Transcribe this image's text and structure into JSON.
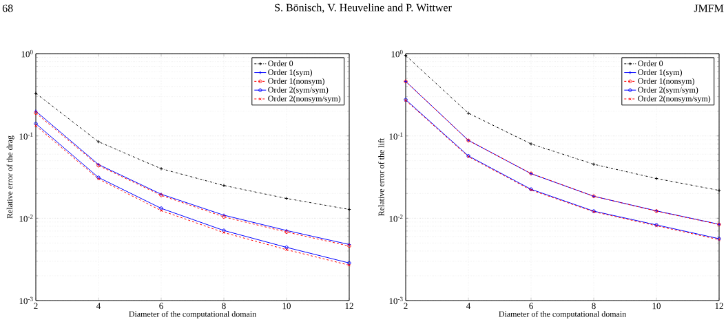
{
  "chart_data": [
    {
      "type": "line",
      "xlabel": "Diameter of the computational domain",
      "ylabel": "Relative error of the drag",
      "annotations": [
        "68",
        "S. Bönisch, V. Heuveline and P. Wittwer"
      ],
      "log": "y",
      "grid": true,
      "legend": "top right",
      "xlim": [
        2,
        12
      ],
      "xticks": [
        2,
        4,
        6,
        8,
        10,
        12
      ],
      "ylim": [
        0.001,
        1
      ],
      "yticks": [
        {
          "value": 0.001,
          "label": "10$^{-3}$"
        },
        {
          "value": 0.01,
          "label": "10$^{-2}$"
        },
        {
          "value": 0.1,
          "label": "10$^{-1}$"
        },
        {
          "value": 1,
          "label": "10$^{0}$"
        }
      ],
      "x": [
        2,
        4,
        6,
        8,
        10,
        12
      ],
      "series": [
        {
          "name": "Order 0",
          "color": "#000000",
          "marker": "plus",
          "line_style": "dashdot",
          "values": [
            0.33,
            0.085,
            0.04,
            0.025,
            0.0174,
            0.0128
          ]
        },
        {
          "name": "Order 1(sym)",
          "color": "#0000ff",
          "marker": "plus",
          "line_style": "solid",
          "values": [
            0.2,
            0.045,
            0.0196,
            0.0109,
            0.0071,
            0.0048
          ]
        },
        {
          "name": "Order 1(nonsym)",
          "color": "#ff0000",
          "marker": "circle",
          "line_style": "dashed",
          "values": [
            0.19,
            0.0437,
            0.019,
            0.0104,
            0.0068,
            0.0046
          ]
        },
        {
          "name": "Order 2(sym/sym)",
          "color": "#0000ff",
          "marker": "circle",
          "line_style": "solid",
          "values": [
            0.141,
            0.0313,
            0.0132,
            0.0071,
            0.00443,
            0.00286
          ]
        },
        {
          "name": "Order 2(nonsym/sym)",
          "color": "#ff0000",
          "marker": "cross",
          "line_style": "dashed",
          "values": [
            0.133,
            0.03,
            0.0124,
            0.0067,
            0.00415,
            0.00269
          ]
        }
      ]
    },
    {
      "type": "line",
      "xlabel": "Diameter of the computational domain",
      "ylabel": "Relative error of the lift",
      "annotations": [
        "JMFM"
      ],
      "log": "y",
      "grid": true,
      "legend": "top right",
      "xlim": [
        2,
        12
      ],
      "xticks": [
        2,
        4,
        6,
        8,
        10,
        12
      ],
      "ylim": [
        0.001,
        1
      ],
      "yticks": [
        {
          "value": 0.001,
          "label": "10$^{-3}$"
        },
        {
          "value": 0.01,
          "label": "10$^{-2}$"
        },
        {
          "value": 0.1,
          "label": "10$^{-1}$"
        },
        {
          "value": 1,
          "label": "10$^{0}$"
        }
      ],
      "x": [
        2,
        4,
        6,
        8,
        10,
        12
      ],
      "series": [
        {
          "name": "Order 0",
          "color": "#000000",
          "marker": "plus",
          "line_style": "dashdot",
          "values": [
            0.95,
            0.189,
            0.08,
            0.0453,
            0.0304,
            0.0218
          ]
        },
        {
          "name": "Order 1(sym)",
          "color": "#0000ff",
          "marker": "plus",
          "line_style": "solid",
          "values": [
            0.46,
            0.0885,
            0.0348,
            0.0185,
            0.0123,
            0.00845
          ]
        },
        {
          "name": "Order 1(nonsym)",
          "color": "#ff0000",
          "marker": "circle",
          "line_style": "dashed",
          "values": [
            0.46,
            0.088,
            0.035,
            0.0185,
            0.0122,
            0.0084
          ]
        },
        {
          "name": "Order 2(sym/sym)",
          "color": "#0000ff",
          "marker": "circle",
          "line_style": "solid",
          "values": [
            0.276,
            0.0572,
            0.0225,
            0.0122,
            0.0083,
            0.00564
          ]
        },
        {
          "name": "Order 2(nonsym/sym)",
          "color": "#ff0000",
          "marker": "cross",
          "line_style": "dashed",
          "values": [
            0.27,
            0.056,
            0.022,
            0.012,
            0.0081,
            0.0055
          ]
        }
      ]
    }
  ]
}
